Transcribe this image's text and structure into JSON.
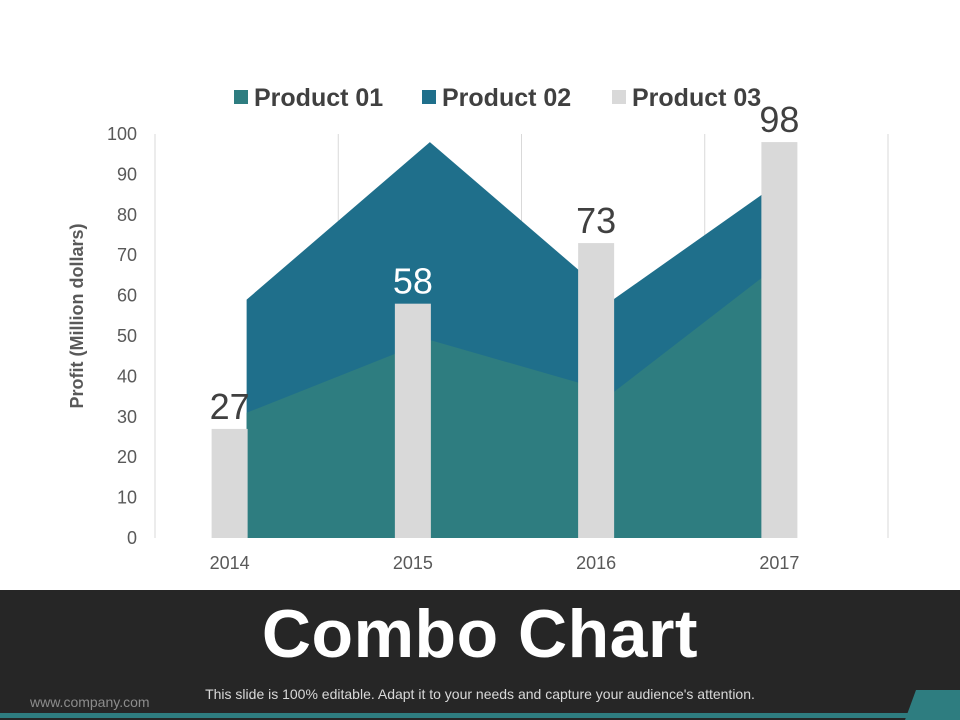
{
  "slide": {
    "title": "Combo Chart",
    "subtitle": "This slide is 100% editable. Adapt it to your needs and capture your audience's attention.",
    "website": "www.company.com"
  },
  "chart_data": {
    "type": "combo",
    "categories": [
      "2014",
      "2015",
      "2016",
      "2017"
    ],
    "ylabel": "Profit  (Million dollars)",
    "ylim": [
      0,
      100
    ],
    "yticks": [
      0,
      10,
      20,
      30,
      40,
      50,
      60,
      70,
      80,
      90,
      100
    ],
    "grid": "vertical",
    "legend_position": "top",
    "series": [
      {
        "name": "Product 01",
        "type": "area",
        "values": [
          31,
          49,
          36,
          71
        ],
        "color": "#2e7d80"
      },
      {
        "name": "Product 02",
        "type": "area",
        "values": [
          59,
          98,
          59,
          91
        ],
        "color": "#1f6f8b"
      },
      {
        "name": "Product 03",
        "type": "bar",
        "values": [
          27,
          58,
          73,
          98
        ],
        "color": "#d9d9d9",
        "labels": [
          "27",
          "58",
          "73",
          "98"
        ]
      }
    ]
  }
}
